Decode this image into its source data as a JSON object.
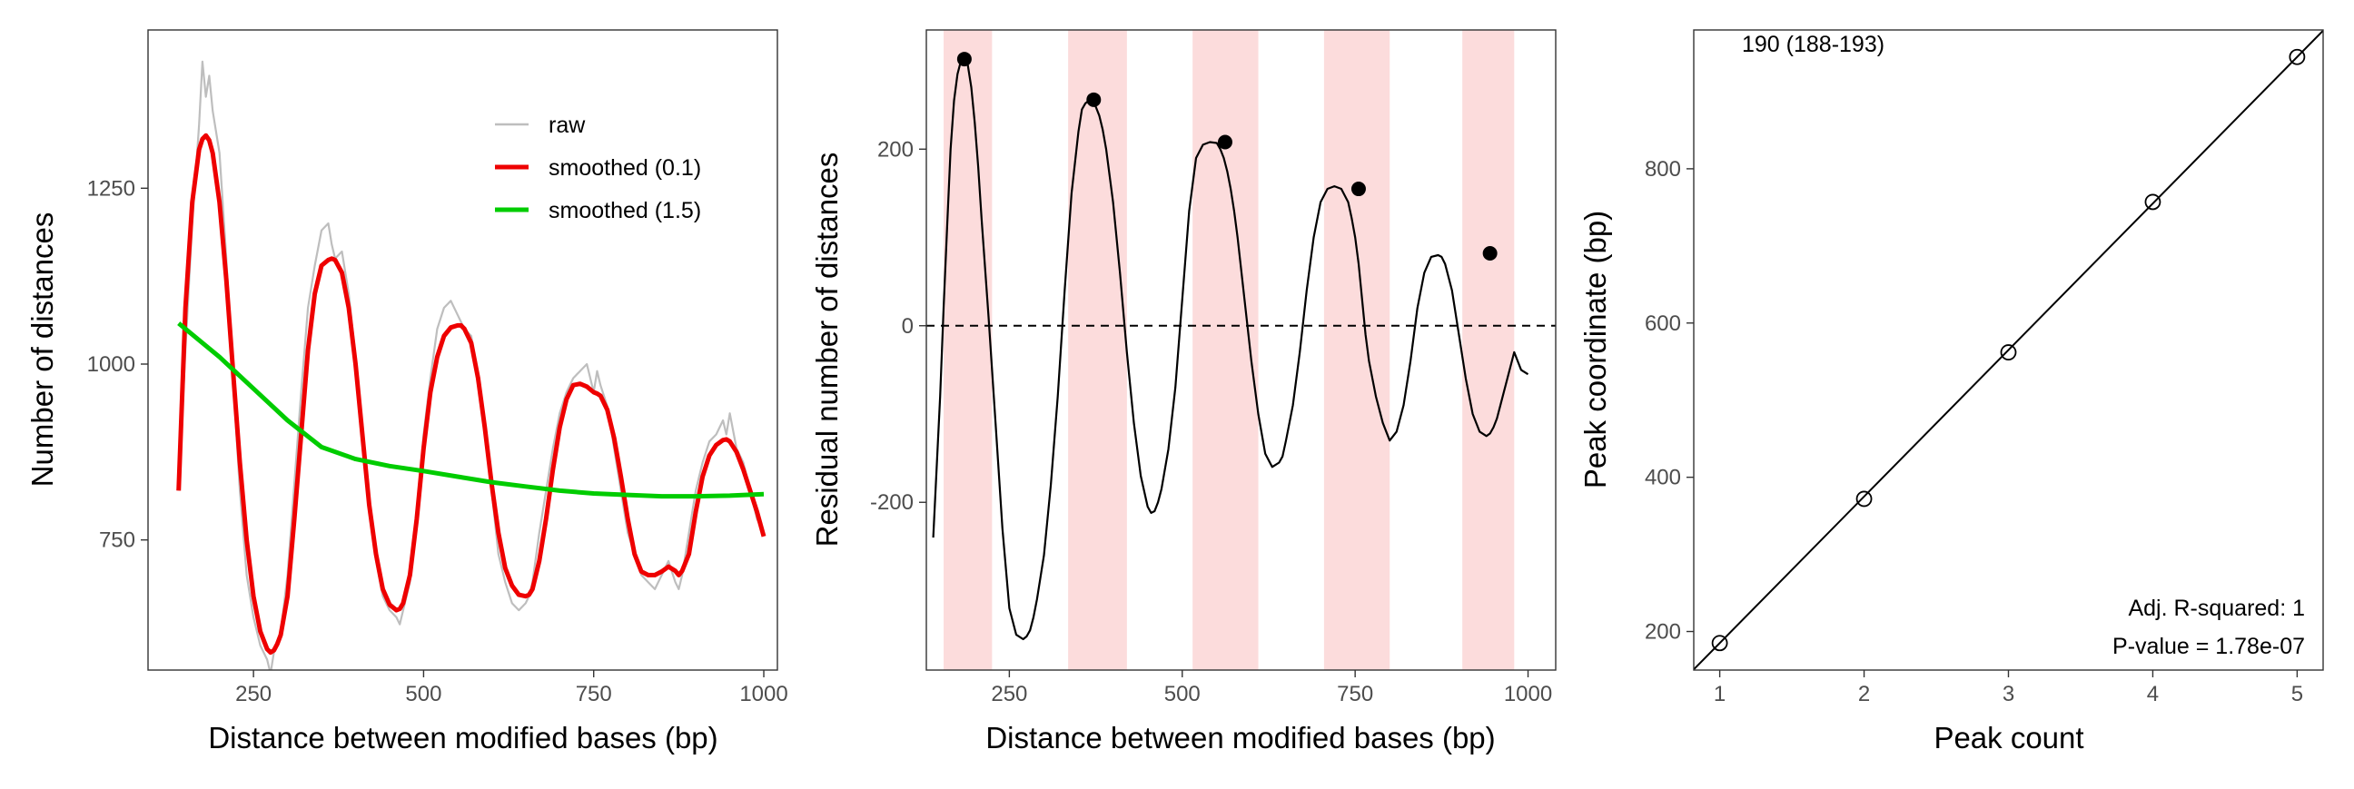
{
  "chart_data": [
    {
      "type": "line",
      "xlabel": "Distance between modified bases (bp)",
      "ylabel": "Number of distances",
      "xlim": [
        95,
        1020
      ],
      "ylim": [
        565,
        1475
      ],
      "xticks": [
        250,
        500,
        750,
        1000
      ],
      "yticks": [
        750,
        1000,
        1250
      ],
      "grid": false,
      "legend_position": "top-right",
      "series": [
        {
          "name": "raw",
          "color": "#bebebe",
          "x": [
            140,
            150,
            160,
            170,
            175,
            180,
            185,
            190,
            200,
            210,
            220,
            230,
            240,
            250,
            260,
            270,
            275,
            280,
            285,
            290,
            300,
            310,
            320,
            330,
            340,
            350,
            360,
            365,
            370,
            380,
            390,
            400,
            410,
            420,
            430,
            440,
            450,
            460,
            465,
            470,
            480,
            490,
            500,
            510,
            520,
            530,
            540,
            550,
            555,
            560,
            570,
            580,
            590,
            600,
            610,
            620,
            630,
            640,
            650,
            655,
            660,
            670,
            680,
            690,
            700,
            710,
            720,
            730,
            740,
            750,
            755,
            760,
            770,
            780,
            790,
            800,
            810,
            820,
            830,
            840,
            850,
            860,
            870,
            875,
            880,
            890,
            900,
            910,
            920,
            930,
            940,
            945,
            950,
            960,
            970,
            980,
            990,
            1000
          ],
          "values": [
            820,
            1020,
            1200,
            1340,
            1430,
            1380,
            1410,
            1360,
            1300,
            1150,
            980,
            820,
            700,
            640,
            600,
            580,
            560,
            590,
            600,
            620,
            700,
            830,
            960,
            1080,
            1140,
            1190,
            1200,
            1170,
            1150,
            1160,
            1100,
            1010,
            900,
            800,
            720,
            670,
            650,
            640,
            630,
            650,
            690,
            780,
            900,
            980,
            1050,
            1080,
            1090,
            1070,
            1060,
            1050,
            1040,
            980,
            900,
            820,
            730,
            690,
            660,
            650,
            660,
            670,
            690,
            760,
            820,
            880,
            930,
            960,
            980,
            990,
            1000,
            960,
            990,
            970,
            940,
            880,
            820,
            760,
            730,
            700,
            690,
            680,
            700,
            720,
            690,
            680,
            700,
            760,
            820,
            860,
            890,
            900,
            920,
            900,
            930,
            880,
            860,
            820,
            780,
            760
          ]
        },
        {
          "name": "smoothed (0.1)",
          "color": "#ee0000",
          "x": [
            140,
            150,
            160,
            170,
            175,
            180,
            185,
            190,
            200,
            210,
            220,
            230,
            240,
            250,
            260,
            270,
            275,
            280,
            285,
            290,
            300,
            310,
            320,
            330,
            340,
            350,
            360,
            365,
            370,
            380,
            390,
            400,
            410,
            420,
            430,
            440,
            450,
            460,
            465,
            470,
            480,
            490,
            500,
            510,
            520,
            530,
            540,
            550,
            555,
            560,
            570,
            580,
            590,
            600,
            610,
            620,
            630,
            640,
            650,
            655,
            660,
            670,
            680,
            690,
            700,
            710,
            720,
            730,
            740,
            750,
            755,
            760,
            770,
            780,
            790,
            800,
            810,
            820,
            830,
            840,
            850,
            860,
            870,
            875,
            880,
            890,
            900,
            910,
            920,
            930,
            940,
            945,
            950,
            960,
            970,
            980,
            990,
            1000
          ],
          "values": [
            820,
            1080,
            1230,
            1305,
            1320,
            1325,
            1318,
            1300,
            1230,
            1120,
            990,
            860,
            750,
            670,
            620,
            595,
            590,
            593,
            602,
            615,
            670,
            780,
            900,
            1020,
            1100,
            1140,
            1148,
            1150,
            1148,
            1130,
            1080,
            1000,
            900,
            800,
            730,
            680,
            658,
            650,
            652,
            660,
            700,
            780,
            880,
            960,
            1010,
            1040,
            1052,
            1055,
            1055,
            1050,
            1030,
            980,
            910,
            830,
            760,
            710,
            685,
            672,
            670,
            672,
            680,
            720,
            780,
            850,
            910,
            950,
            970,
            972,
            968,
            960,
            958,
            955,
            935,
            895,
            840,
            780,
            730,
            705,
            700,
            700,
            705,
            712,
            706,
            700,
            706,
            730,
            790,
            840,
            870,
            885,
            892,
            893,
            890,
            875,
            850,
            820,
            790,
            755
          ]
        },
        {
          "name": "smoothed (1.5)",
          "color": "#00cc00",
          "x": [
            140,
            200,
            250,
            300,
            350,
            400,
            450,
            500,
            550,
            600,
            650,
            700,
            750,
            800,
            850,
            900,
            950,
            1000
          ],
          "values": [
            1058,
            1010,
            965,
            920,
            882,
            865,
            855,
            848,
            840,
            832,
            826,
            820,
            816,
            814,
            812,
            812,
            813,
            815
          ]
        }
      ]
    },
    {
      "type": "line",
      "xlabel": "Distance between modified bases (bp)",
      "ylabel": "Residual number of distances",
      "xlim": [
        130,
        1040
      ],
      "ylim": [
        -390,
        335
      ],
      "xticks": [
        250,
        500,
        750,
        1000
      ],
      "yticks": [
        -200,
        0,
        200
      ],
      "grid": false,
      "reference_line_y": 0,
      "highlight_bands": [
        [
          155,
          225
        ],
        [
          335,
          420
        ],
        [
          515,
          610
        ],
        [
          705,
          800
        ],
        [
          905,
          980
        ]
      ],
      "band_color": "#fcdcdc",
      "series": [
        {
          "color": "#000000",
          "x": [
            140,
            150,
            155,
            160,
            165,
            170,
            175,
            180,
            185,
            190,
            195,
            200,
            205,
            210,
            220,
            230,
            240,
            250,
            260,
            270,
            275,
            280,
            285,
            290,
            300,
            310,
            320,
            330,
            340,
            350,
            355,
            360,
            365,
            370,
            375,
            380,
            385,
            390,
            400,
            410,
            420,
            430,
            440,
            450,
            455,
            460,
            465,
            470,
            480,
            490,
            500,
            510,
            520,
            530,
            540,
            550,
            555,
            560,
            565,
            570,
            575,
            580,
            590,
            600,
            610,
            620,
            630,
            640,
            645,
            650,
            660,
            670,
            680,
            690,
            700,
            710,
            720,
            730,
            740,
            745,
            750,
            755,
            760,
            765,
            770,
            780,
            790,
            800,
            810,
            820,
            830,
            840,
            850,
            860,
            870,
            875,
            880,
            890,
            900,
            910,
            920,
            930,
            940,
            945,
            950,
            955,
            960,
            970,
            980,
            990,
            1000
          ],
          "values": [
            -240,
            -80,
            20,
            110,
            200,
            255,
            285,
            300,
            302,
            295,
            270,
            230,
            180,
            120,
            10,
            -110,
            -230,
            -320,
            -350,
            -355,
            -352,
            -345,
            -330,
            -310,
            -260,
            -180,
            -80,
            40,
            150,
            220,
            245,
            252,
            255,
            253,
            248,
            238,
            222,
            200,
            140,
            60,
            -30,
            -110,
            -170,
            -205,
            -212,
            -210,
            -200,
            -185,
            -140,
            -70,
            30,
            130,
            190,
            205,
            208,
            207,
            200,
            190,
            175,
            155,
            130,
            100,
            30,
            -40,
            -100,
            -145,
            -160,
            -155,
            -148,
            -130,
            -90,
            -30,
            40,
            100,
            140,
            155,
            158,
            155,
            140,
            122,
            100,
            70,
            30,
            -10,
            -40,
            -80,
            -110,
            -130,
            -120,
            -90,
            -40,
            20,
            60,
            78,
            80,
            78,
            70,
            40,
            -10,
            -60,
            -100,
            -120,
            -125,
            -122,
            -115,
            -105,
            -90,
            -60,
            -30,
            -50,
            -55
          ]
        }
      ],
      "peaks": {
        "x": [
          185,
          372,
          562,
          755,
          945
        ],
        "values": [
          302,
          256,
          208,
          155,
          82
        ]
      }
    },
    {
      "type": "scatter",
      "xlabel": "Peak count",
      "ylabel": "Peak coordinate (bp)",
      "xlim": [
        0.82,
        5.18
      ],
      "ylim": [
        150,
        980
      ],
      "xticks": [
        1,
        2,
        3,
        4,
        5
      ],
      "yticks": [
        200,
        400,
        600,
        800
      ],
      "grid": false,
      "x": [
        1,
        2,
        3,
        4,
        5
      ],
      "values": [
        185,
        372,
        562,
        757,
        945
      ],
      "fit_line": {
        "slope": 190,
        "intercept": -5
      },
      "annotations": {
        "top_left": "190 (188-193)",
        "rsquared": "Adj. R-squared: 1",
        "pvalue": "P-value = 1.78e-07"
      }
    }
  ]
}
